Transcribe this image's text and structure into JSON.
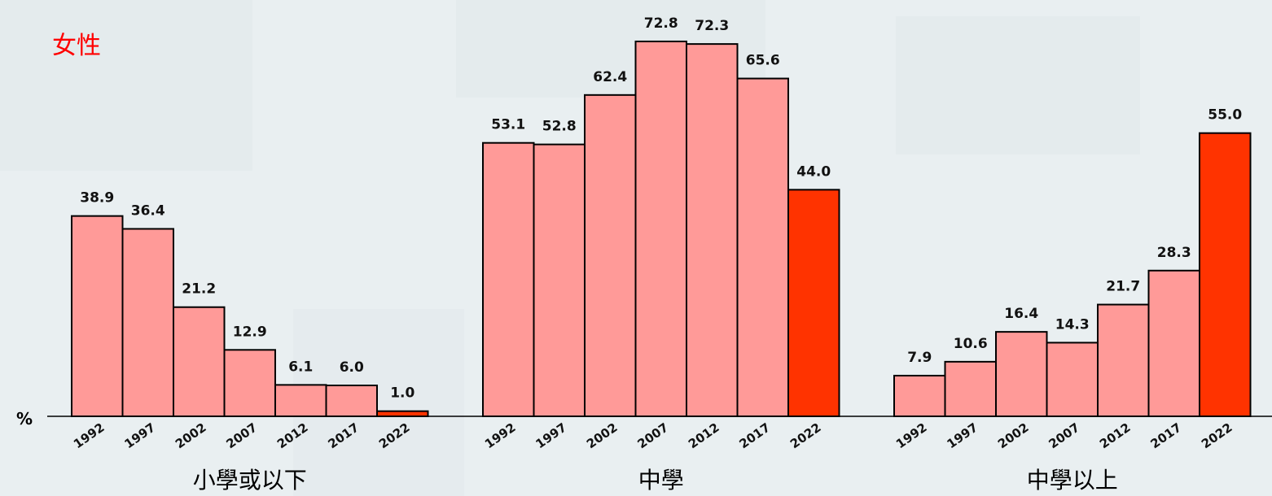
{
  "chart_data": {
    "type": "bar",
    "title": "女性",
    "ylabel": "%",
    "ylim": [
      0,
      80
    ],
    "grid": false,
    "legend": "none",
    "categories": [
      "1992",
      "1997",
      "2002",
      "2007",
      "2012",
      "2017",
      "2022"
    ],
    "groups": [
      {
        "label": "小學或以下",
        "values": [
          38.9,
          36.4,
          21.2,
          12.9,
          6.1,
          6.0,
          1.0
        ],
        "value_labels": [
          "38.9",
          "36.4",
          "21.2",
          "12.9",
          "6.1",
          "6.0",
          "1.0"
        ]
      },
      {
        "label": "中學",
        "values": [
          53.1,
          52.8,
          62.4,
          72.8,
          72.3,
          65.6,
          44.0
        ],
        "value_labels": [
          "53.1",
          "52.8",
          "62.4",
          "72.8",
          "72.3",
          "65.6",
          "44.0"
        ]
      },
      {
        "label": "中學以上",
        "values": [
          7.9,
          10.6,
          16.4,
          14.3,
          21.7,
          28.3,
          55.0
        ],
        "value_labels": [
          "7.9",
          "10.6",
          "16.4",
          "14.3",
          "21.7",
          "28.3",
          "55.0"
        ]
      }
    ],
    "colors": {
      "bar": "#ff9a98",
      "highlight": "#ff3300",
      "highlight_category": "2022",
      "axis": "#000000",
      "title": "#ff0000"
    }
  }
}
